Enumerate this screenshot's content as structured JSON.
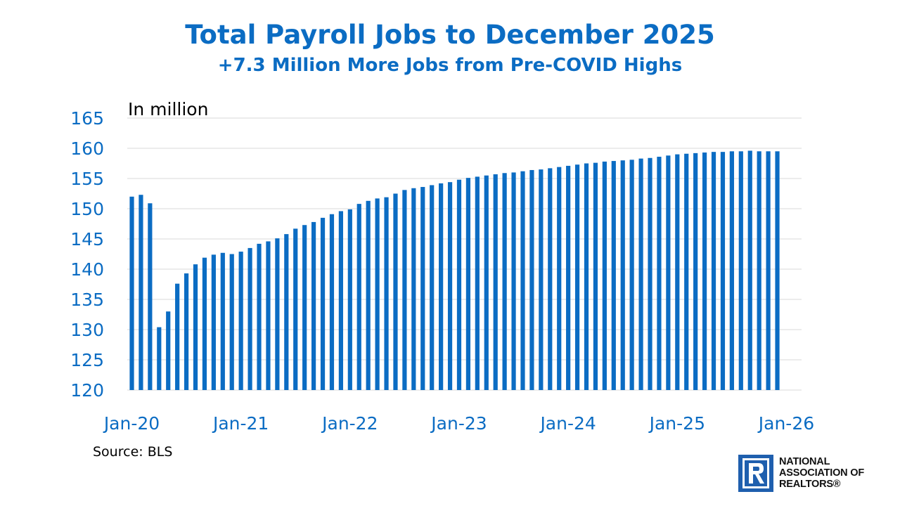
{
  "chart_data": {
    "type": "bar",
    "title": "Total Payroll Jobs to December 2025",
    "subtitle": "+7.3 Million More Jobs from Pre-COVID Highs",
    "unit_label": "In million",
    "source": "Source: BLS",
    "ylim": [
      120,
      165
    ],
    "yticks": [
      120,
      125,
      130,
      135,
      140,
      145,
      150,
      155,
      160,
      165
    ],
    "xtick_labels": [
      "Jan-20",
      "Jan-21",
      "Jan-22",
      "Jan-23",
      "Jan-24",
      "Jan-25",
      "Jan-26"
    ],
    "xtick_positions": [
      0,
      12,
      24,
      36,
      48,
      60,
      72
    ],
    "grid": true,
    "bar_color": "#0B6CC3",
    "categories": [
      "Jan-20",
      "Feb-20",
      "Mar-20",
      "Apr-20",
      "May-20",
      "Jun-20",
      "Jul-20",
      "Aug-20",
      "Sep-20",
      "Oct-20",
      "Nov-20",
      "Dec-20",
      "Jan-21",
      "Feb-21",
      "Mar-21",
      "Apr-21",
      "May-21",
      "Jun-21",
      "Jul-21",
      "Aug-21",
      "Sep-21",
      "Oct-21",
      "Nov-21",
      "Dec-21",
      "Jan-22",
      "Feb-22",
      "Mar-22",
      "Apr-22",
      "May-22",
      "Jun-22",
      "Jul-22",
      "Aug-22",
      "Sep-22",
      "Oct-22",
      "Nov-22",
      "Dec-22",
      "Jan-23",
      "Feb-23",
      "Mar-23",
      "Apr-23",
      "May-23",
      "Jun-23",
      "Jul-23",
      "Aug-23",
      "Sep-23",
      "Oct-23",
      "Nov-23",
      "Dec-23",
      "Jan-24",
      "Feb-24",
      "Mar-24",
      "Apr-24",
      "May-24",
      "Jun-24",
      "Jul-24",
      "Aug-24",
      "Sep-24",
      "Oct-24",
      "Nov-24",
      "Dec-24",
      "Jan-25",
      "Feb-25",
      "Mar-25",
      "Apr-25",
      "May-25",
      "Jun-25",
      "Jul-25",
      "Aug-25",
      "Sep-25",
      "Oct-25",
      "Nov-25",
      "Dec-25"
    ],
    "values": [
      152.0,
      152.3,
      150.9,
      130.4,
      133.0,
      137.6,
      139.3,
      140.8,
      141.9,
      142.4,
      142.7,
      142.5,
      142.9,
      143.5,
      144.2,
      144.6,
      145.1,
      145.8,
      146.7,
      147.3,
      147.8,
      148.5,
      149.1,
      149.6,
      149.9,
      150.8,
      151.3,
      151.7,
      151.9,
      152.5,
      153.1,
      153.4,
      153.6,
      153.9,
      154.2,
      154.4,
      154.8,
      155.1,
      155.3,
      155.5,
      155.7,
      155.9,
      156.0,
      156.2,
      156.4,
      156.5,
      156.7,
      156.9,
      157.1,
      157.3,
      157.5,
      157.6,
      157.8,
      157.9,
      158.0,
      158.1,
      158.3,
      158.4,
      158.6,
      158.8,
      159.0,
      159.1,
      159.2,
      159.3,
      159.4,
      159.4,
      159.5,
      159.5,
      159.6,
      159.5,
      159.5,
      159.5
    ]
  },
  "logo": {
    "line1": "NATIONAL",
    "line2": "ASSOCIATION OF",
    "line3": "REALTORS®",
    "color": "#1F5FAE"
  }
}
